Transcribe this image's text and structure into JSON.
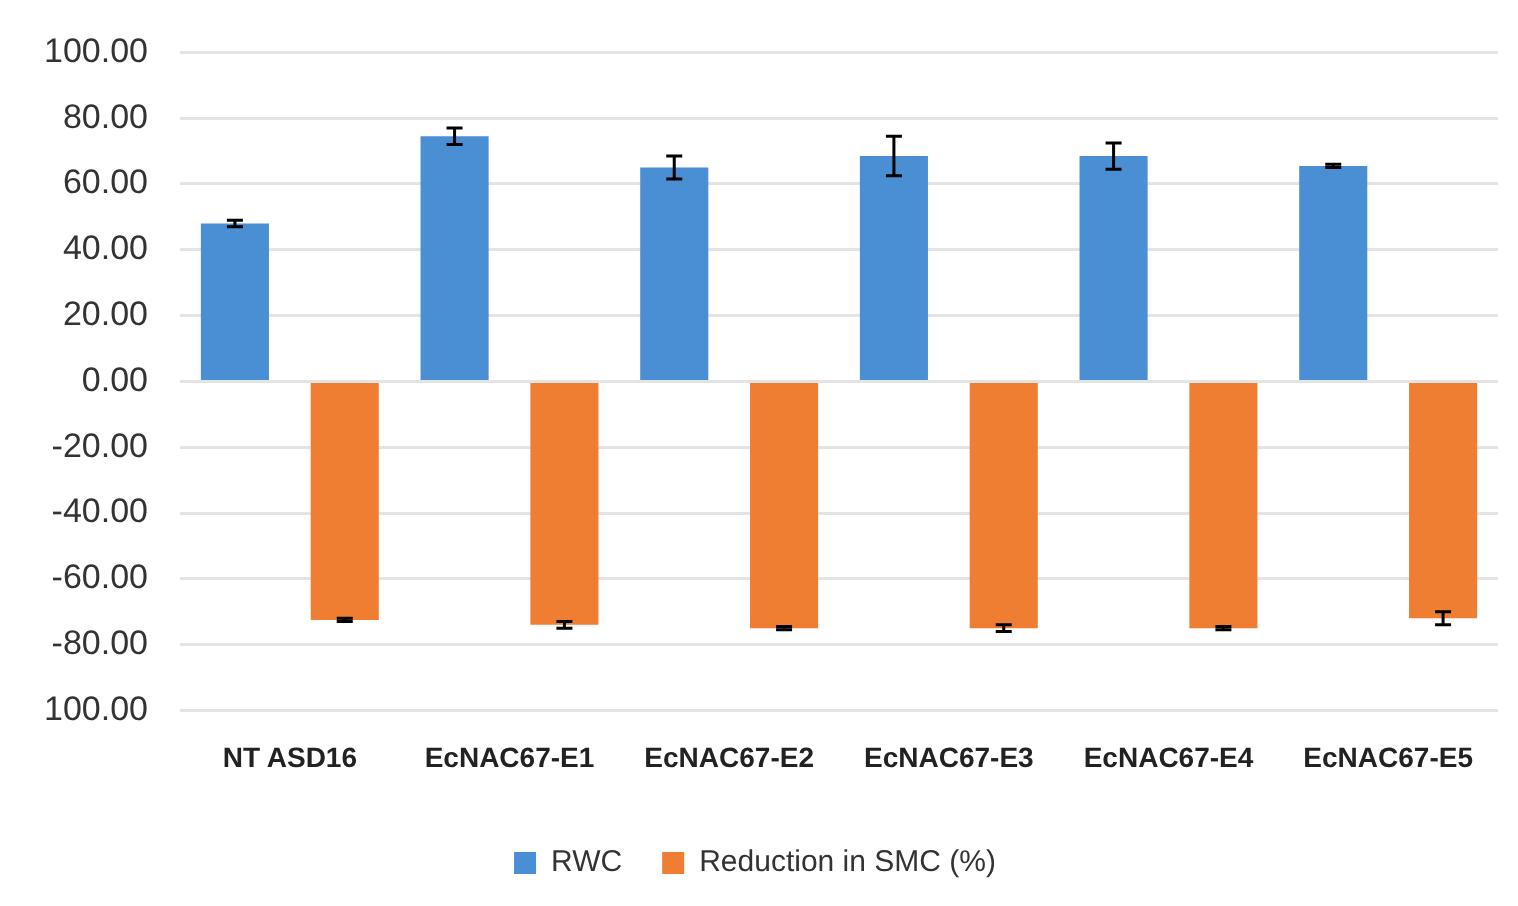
{
  "chart_data": {
    "type": "bar",
    "categories": [
      "NT ASD16",
      "EcNAC67-E1",
      "EcNAC67-E2",
      "EcNAC67-E3",
      "EcNAC67-E4",
      "EcNAC67-E5"
    ],
    "series": [
      {
        "name": "RWC",
        "color": "#4a8fd4",
        "values": [
          48,
          74.5,
          65,
          68.5,
          68.5,
          65.5
        ],
        "errors": [
          1,
          2.5,
          3.5,
          6,
          4,
          0.5
        ]
      },
      {
        "name": "Reduction in SMC (%)",
        "color": "#ef7d32",
        "values": [
          -72.5,
          -74,
          -75,
          -75,
          -75,
          -72
        ],
        "errors": [
          0.5,
          1,
          0.5,
          1,
          0.5,
          2
        ]
      }
    ],
    "ylim": [
      -100,
      100
    ],
    "yticks": [
      {
        "value": -100,
        "label": "100.00"
      },
      {
        "value": -80,
        "label": "-80.00"
      },
      {
        "value": -60,
        "label": "-60.00"
      },
      {
        "value": -40,
        "label": "-40.00"
      },
      {
        "value": -20,
        "label": "-20.00"
      },
      {
        "value": 0,
        "label": "0.00"
      },
      {
        "value": 20,
        "label": "20.00"
      },
      {
        "value": 40,
        "label": "40.00"
      },
      {
        "value": 60,
        "label": "60.00"
      },
      {
        "value": 80,
        "label": "80.00"
      },
      {
        "value": 100,
        "label": "100.00"
      }
    ],
    "grid": "y",
    "legend": "bottom"
  }
}
